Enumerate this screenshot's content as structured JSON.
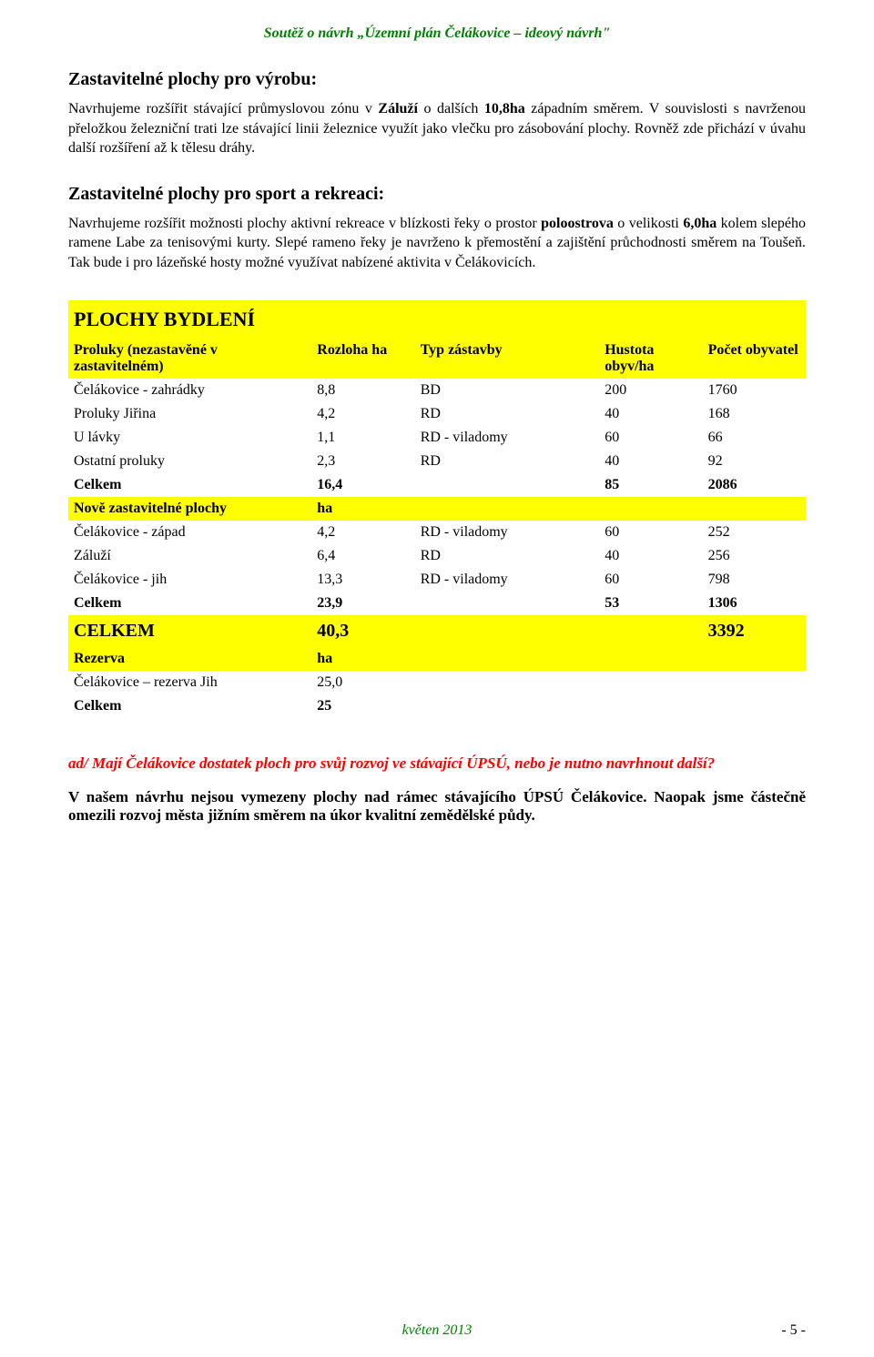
{
  "header_title": "Soutěž o návrh „Územní plán Čelákovice – ideový návrh\"",
  "sec1": {
    "title": "Zastavitelné plochy pro výrobu:",
    "p_parts": [
      "Navrhujeme rozšířit stávající průmyslovou zónu v ",
      "Záluží",
      " o dalších ",
      "10,8ha",
      " západním směrem. V souvislosti s navrženou přeložkou železniční trati lze stávající linii železnice využít jako vlečku pro zásobování plochy. Rovněž zde přichází v úvahu další rozšíření  až k tělesu dráhy."
    ]
  },
  "sec2": {
    "title": "Zastavitelné plochy pro sport a rekreaci:",
    "p_parts": [
      "Navrhujeme rozšířit možnosti plochy aktivní rekreace v blízkosti řeky o  prostor ",
      "poloostrova",
      " o velikosti ",
      "6,0ha",
      " kolem slepého ramene Labe za tenisovými kurty. Slepé rameno řeky je navrženo k přemostění a zajištění průchodnosti směrem na Toušeň. Tak bude i pro lázeňské hosty možné využívat nabízené aktivita v Čelákovicích."
    ]
  },
  "table": {
    "title": "PLOCHY BYDLENÍ",
    "hdr1": {
      "a": "Proluky (nezastavěné v zastavitelném)",
      "b": "Rozloha ha",
      "c": "Typ zástavby",
      "d": "Hustota obyv/ha",
      "e": "Počet obyvatel"
    },
    "rows1": [
      {
        "a": "Čelákovice - zahrádky",
        "b": "8,8",
        "c": "BD",
        "d": "200",
        "e": "1760"
      },
      {
        "a": "Proluky Jiřina",
        "b": "4,2",
        "c": "RD",
        "d": "40",
        "e": "168"
      },
      {
        "a": "U lávky",
        "b": "1,1",
        "c": "RD - viladomy",
        "d": "60",
        "e": "66"
      },
      {
        "a": "Ostatní proluky",
        "b": "2,3",
        "c": "RD",
        "d": "40",
        "e": "92"
      }
    ],
    "sum1": {
      "a": "Celkem",
      "b": "16,4",
      "c": "",
      "d": "85",
      "e": "2086"
    },
    "hdr2": {
      "a": "Nově zastavitelné plochy",
      "b": "ha",
      "c": "",
      "d": "",
      "e": ""
    },
    "rows2": [
      {
        "a": "Čelákovice - západ",
        "b": "4,2",
        "c": "RD - viladomy",
        "d": "60",
        "e": "252"
      },
      {
        "a": "Záluží",
        "b": "6,4",
        "c": "RD",
        "d": "40",
        "e": "256"
      },
      {
        "a": "Čelákovice - jih",
        "b": "13,3",
        "c": "RD - viladomy",
        "d": "60",
        "e": "798"
      }
    ],
    "sum2": {
      "a": "Celkem",
      "b": "23,9",
      "c": "",
      "d": "53",
      "e": "1306"
    },
    "total": {
      "a": "CELKEM",
      "b": "40,3",
      "c": "",
      "d": "",
      "e": "3392"
    },
    "hdr3": {
      "a": "Rezerva",
      "b": "ha",
      "c": "",
      "d": "",
      "e": ""
    },
    "rows3": [
      {
        "a": "Čelákovice – rezerva Jih",
        "b": "25,0",
        "c": "",
        "d": "",
        "e": ""
      }
    ],
    "sum3": {
      "a": "Celkem",
      "b": "25",
      "c": "",
      "d": "",
      "e": ""
    }
  },
  "question": "ad/ Mají Čelákovice dostatek ploch pro svůj rozvoj ve stávající ÚPSÚ, nebo je nutno navrhnout další?",
  "answer": "V našem návrhu nejsou vymezeny plochy nad rámec stávajícího ÚPSÚ Čelákovice. Naopak jsme částečně omezili rozvoj města jižním směrem na úkor kvalitní zemědělské půdy.",
  "footer_date": "květen 2013",
  "footer_page": "- 5 -",
  "colors": {
    "accent_green": "#008000",
    "accent_red": "#ff0000",
    "highlight_yellow": "#ffff00",
    "text_black": "#000000",
    "background": "#ffffff"
  }
}
